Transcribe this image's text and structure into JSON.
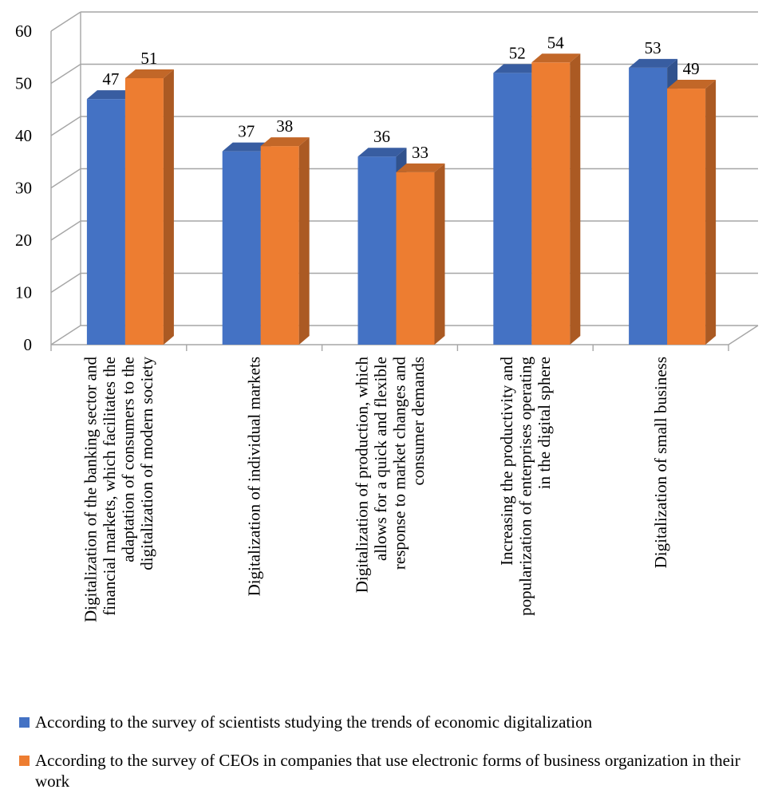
{
  "chart_data": {
    "type": "bar",
    "title": "",
    "xlabel": "",
    "ylabel": "",
    "ylim": [
      0,
      60
    ],
    "yticks": [
      0,
      10,
      20,
      30,
      40,
      50,
      60
    ],
    "grid": true,
    "style": "3d-clustered-column",
    "legend_position": "bottom",
    "categories": [
      "Digitalization of the banking sector and financial markets, which facilitates the adaptation of consumers to the digitalization of modern society",
      "Digitalization of individual markets",
      "Digitalization of production, which allows for a quick and flexible response to market changes and consumer demands",
      "Increasing the productivity and popularization of enterprises operating in the digital sphere",
      "Digitalization of small business"
    ],
    "category_lines": [
      [
        "Digitalization of the banking sector and",
        "financial markets, which facilitates the",
        "adaptation of consumers to the",
        "digitalization of modern society"
      ],
      [
        "Digitalization of individual markets"
      ],
      [
        "Digitalization of production, which",
        "allows for a quick and flexible",
        "response to market changes and",
        "consumer demands"
      ],
      [
        "Increasing the productivity and",
        "popularization of enterprises operating",
        "in the digital sphere"
      ],
      [
        "Digitalization of small business"
      ]
    ],
    "series": [
      {
        "name": "According to the survey of scientists studying the trends of economic digitalization",
        "color": "#4472c4",
        "values": [
          47,
          37,
          36,
          52,
          53
        ]
      },
      {
        "name": "According to the survey of CEOs in companies that use electronic forms of business organization in their work",
        "color": "#ed7d31",
        "values": [
          51,
          38,
          33,
          54,
          49
        ]
      }
    ]
  },
  "legend": {
    "entries": [
      {
        "label": "According to the survey of scientists studying the trends of economic digitalization",
        "color": "#4472c4"
      },
      {
        "label": "According to the survey of CEOs in companies that use electronic forms of business organization in their work",
        "color": "#ed7d31"
      }
    ]
  },
  "colors": {
    "grid": "#a6a6a6",
    "axis_text": "#000000"
  }
}
